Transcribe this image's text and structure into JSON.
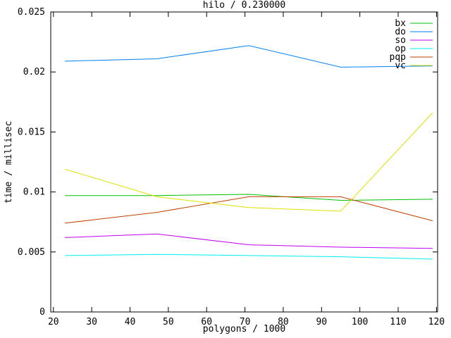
{
  "window": {
    "background": "#ffffff",
    "foreground": "#000000"
  },
  "chart_data": {
    "type": "line",
    "title": "hilo / 0.230000",
    "xlabel": "polygons / 1000",
    "ylabel": "time / millisec",
    "x": [
      23,
      47,
      71,
      95,
      119
    ],
    "series": [
      {
        "name": "bx",
        "color": "#00c000",
        "values": [
          0.0097,
          0.0097,
          0.0098,
          0.0093,
          0.0094
        ]
      },
      {
        "name": "do",
        "color": "#0080f0",
        "values": [
          0.0209,
          0.0211,
          0.0222,
          0.0204,
          0.0205
        ]
      },
      {
        "name": "so",
        "color": "#c000f0",
        "values": [
          0.0062,
          0.0065,
          0.0056,
          0.0054,
          0.0053
        ]
      },
      {
        "name": "op",
        "color": "#00eeee",
        "values": [
          0.0047,
          0.0048,
          0.0047,
          0.0046,
          0.0044
        ]
      },
      {
        "name": "pqp",
        "color": "#c04000",
        "values": [
          0.0074,
          0.0083,
          0.0096,
          0.0096,
          0.0076
        ]
      },
      {
        "name": "vc",
        "color": "#e0e000",
        "values": [
          0.0119,
          0.0096,
          0.0087,
          0.0084,
          0.0166
        ]
      }
    ],
    "xlim": [
      19.3,
      120.3
    ],
    "ylim": [
      0,
      0.025
    ],
    "x_ticks": [
      20,
      30,
      40,
      50,
      60,
      70,
      80,
      90,
      100,
      110,
      120
    ],
    "x_tick_labels": [
      "20",
      "30",
      "40",
      "50",
      "60",
      "70",
      "80",
      "90",
      "100",
      "110",
      "120"
    ],
    "y_ticks": [
      0,
      0.005,
      0.01,
      0.015,
      0.02,
      0.025
    ],
    "y_tick_labels": [
      "0",
      "0.005",
      "0.01",
      "0.015",
      "0.02",
      "0.025"
    ],
    "grid": false,
    "legend_position": "top-right",
    "legend_entries": [
      "bx",
      "do",
      "so",
      "op",
      "pqp",
      "vc"
    ]
  }
}
